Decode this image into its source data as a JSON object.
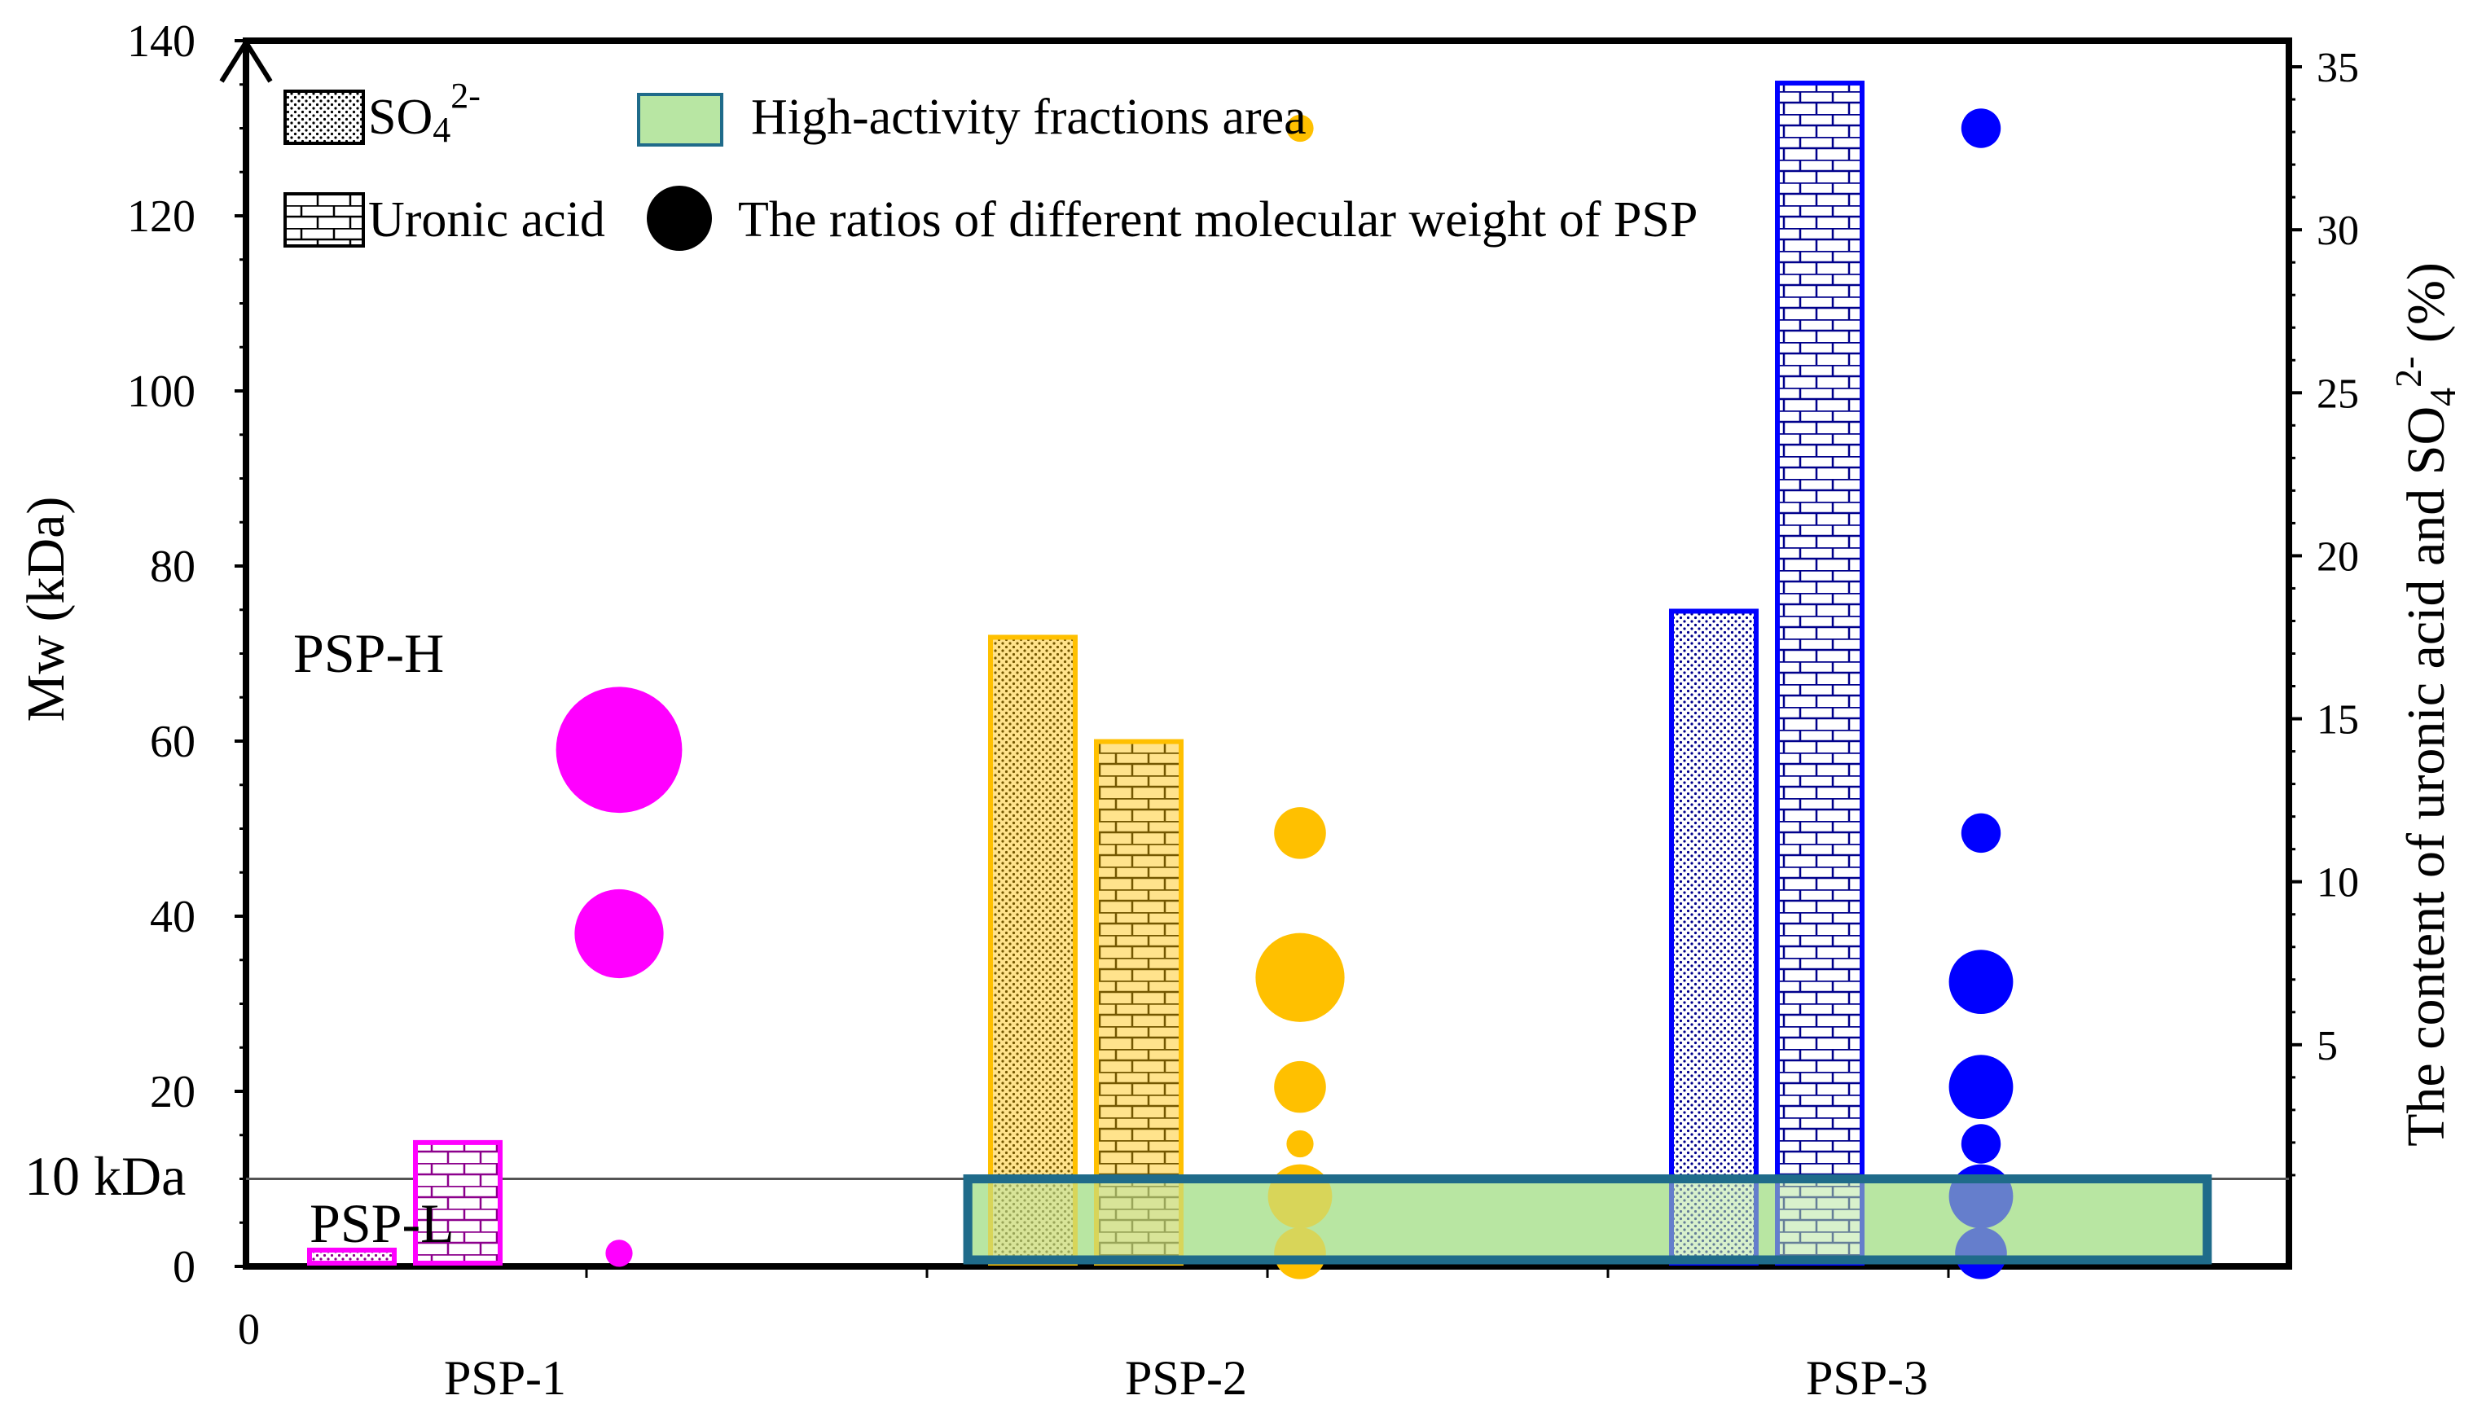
{
  "chart_data": {
    "type": "bar",
    "categories": [
      "PSP-1",
      "PSP-2",
      "PSP-3"
    ],
    "category_colors": [
      "#ff00ff",
      "#ffc000",
      "#0000ff"
    ],
    "left_axis": {
      "label": "Mw (kDa)",
      "ylim": [
        0,
        140
      ],
      "ticks": [
        0,
        20,
        40,
        60,
        80,
        100,
        120,
        140
      ]
    },
    "right_axis": {
      "label_prefix": "The content of uronic acid and SO",
      "label_subscript": "4",
      "label_superscript": "2-",
      "label_suffix": " (%)",
      "ylim": [
        -1.8,
        35.8
      ],
      "ticks": [
        5,
        10,
        15,
        20,
        25,
        30,
        35
      ]
    },
    "x_origin_label": "0",
    "threshold": {
      "value": 10,
      "label": "10 kDa",
      "upper_region_label": "PSP-H",
      "lower_region_label": "PSP-L"
    },
    "series": [
      {
        "name": "SO₄²⁻",
        "axis": "right",
        "pattern": "dots",
        "values": [
          -1.3,
          17.5,
          18.3
        ]
      },
      {
        "name": "Uronic acid",
        "axis": "right",
        "pattern": "brick",
        "values": [
          2.0,
          14.3,
          34.5
        ]
      }
    ],
    "bubbles": {
      "name": "The ratios of different molecular weight of PSP",
      "points": [
        {
          "category": "PSP-1",
          "mw": 59,
          "size": 9
        },
        {
          "category": "PSP-1",
          "mw": 38,
          "size": 6
        },
        {
          "category": "PSP-1",
          "mw": 1.5,
          "size": 1
        },
        {
          "category": "PSP-2",
          "mw": 130,
          "size": 1
        },
        {
          "category": "PSP-2",
          "mw": 49.5,
          "size": 3
        },
        {
          "category": "PSP-2",
          "mw": 33,
          "size": 6
        },
        {
          "category": "PSP-2",
          "mw": 20.5,
          "size": 3
        },
        {
          "category": "PSP-2",
          "mw": 14,
          "size": 1
        },
        {
          "category": "PSP-2",
          "mw": 8,
          "size": 4
        },
        {
          "category": "PSP-2",
          "mw": 1.5,
          "size": 3
        },
        {
          "category": "PSP-3",
          "mw": 130,
          "size": 2
        },
        {
          "category": "PSP-3",
          "mw": 49.5,
          "size": 2
        },
        {
          "category": "PSP-3",
          "mw": 32.5,
          "size": 4
        },
        {
          "category": "PSP-3",
          "mw": 20.5,
          "size": 4
        },
        {
          "category": "PSP-3",
          "mw": 14,
          "size": 2
        },
        {
          "category": "PSP-3",
          "mw": 8,
          "size": 4
        },
        {
          "category": "PSP-3",
          "mw": 1.5,
          "size": 3
        }
      ]
    },
    "highlight_area": {
      "label": "High-activity fractions area",
      "mw_range": [
        0,
        10
      ],
      "from_category": "PSP-2",
      "to_category": "PSP-3",
      "fill": "#b8e6a3",
      "stroke": "#1f6b8a"
    },
    "legend": {
      "so4_prefix": "SO",
      "so4_subscript": "4",
      "so4_superscript": "2-",
      "uronic": "Uronic acid",
      "area": "High-activity fractions area",
      "ratios": "The ratios of different molecular weight of PSP"
    }
  }
}
